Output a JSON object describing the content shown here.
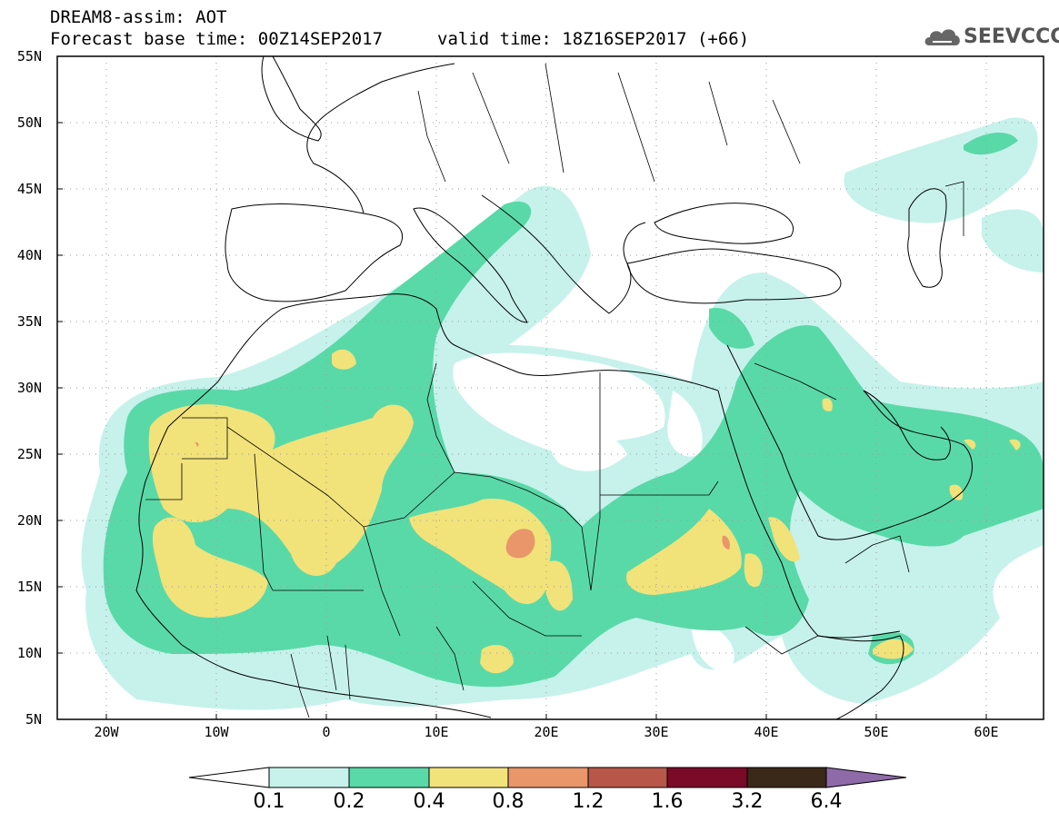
{
  "header": {
    "title_line1": "DREAM8-assim: AOT",
    "title_line2": "Forecast base time: 00Z14SEP2017",
    "valid_time": "valid time: 18Z16SEP2017 (+66)",
    "logo_text": "SEEVCCC"
  },
  "map": {
    "variable": "AOT",
    "lat_range": [
      5,
      55
    ],
    "lon_range": [
      -25,
      65
    ],
    "lat_labels": [
      "55N",
      "50N",
      "45N",
      "40N",
      "35N",
      "30N",
      "25N",
      "20N",
      "15N",
      "10N",
      "5N"
    ],
    "lon_labels": [
      "20W",
      "10W",
      "0",
      "10E",
      "20E",
      "30E",
      "40E",
      "50E",
      "60E"
    ]
  },
  "colorbar": {
    "labels": [
      "0.1",
      "0.2",
      "0.4",
      "0.8",
      "1.2",
      "1.6",
      "3.2",
      "6.4"
    ],
    "colors": [
      "#c6f2eb",
      "#5ad9a8",
      "#f2e27a",
      "#e8966a",
      "#b8564a",
      "#7a0a28",
      "#3a2818",
      "#8e6aa8"
    ]
  }
}
